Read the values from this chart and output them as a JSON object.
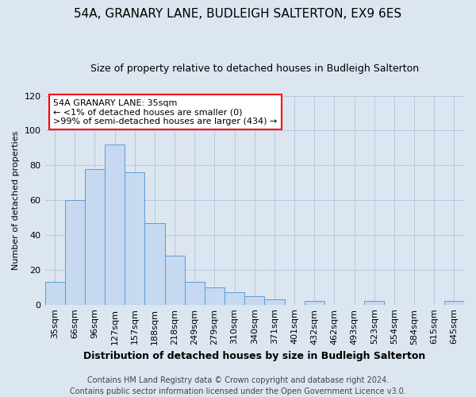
{
  "title": "54A, GRANARY LANE, BUDLEIGH SALTERTON, EX9 6ES",
  "subtitle": "Size of property relative to detached houses in Budleigh Salterton",
  "xlabel": "Distribution of detached houses by size in Budleigh Salterton",
  "ylabel": "Number of detached properties",
  "footer_line1": "Contains HM Land Registry data © Crown copyright and database right 2024.",
  "footer_line2": "Contains public sector information licensed under the Open Government Licence v3.0.",
  "annotation_line1": "54A GRANARY LANE: 35sqm",
  "annotation_line2": "← <1% of detached houses are smaller (0)",
  "annotation_line3": ">99% of semi-detached houses are larger (434) →",
  "bar_color": "#c6d9f0",
  "bar_edge_color": "#5b9bd5",
  "fig_bg_color": "#dce6f1",
  "categories": [
    "35sqm",
    "66sqm",
    "96sqm",
    "127sqm",
    "157sqm",
    "188sqm",
    "218sqm",
    "249sqm",
    "279sqm",
    "310sqm",
    "340sqm",
    "371sqm",
    "401sqm",
    "432sqm",
    "462sqm",
    "493sqm",
    "523sqm",
    "554sqm",
    "584sqm",
    "615sqm",
    "645sqm"
  ],
  "values": [
    13,
    60,
    78,
    92,
    76,
    47,
    28,
    13,
    10,
    7,
    5,
    3,
    0,
    2,
    0,
    0,
    2,
    0,
    0,
    0,
    2
  ],
  "ylim": [
    0,
    120
  ],
  "yticks": [
    0,
    20,
    40,
    60,
    80,
    100,
    120
  ],
  "title_fontsize": 11,
  "subtitle_fontsize": 9,
  "xlabel_fontsize": 9,
  "ylabel_fontsize": 8,
  "tick_fontsize": 8,
  "footer_fontsize": 7
}
